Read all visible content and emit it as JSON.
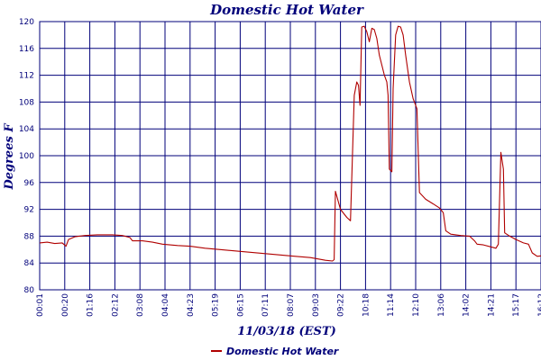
{
  "chart_data": {
    "type": "line",
    "title": "Domestic Hot Water",
    "xlabel": "11/03/18 (EST)",
    "ylabel": "Degrees F",
    "ylim": [
      80,
      120
    ],
    "yticks": [
      "80",
      "84",
      "88",
      "92",
      "96",
      "100",
      "104",
      "108",
      "112",
      "116",
      "120"
    ],
    "xticks": [
      "00:01",
      "00:20",
      "01:16",
      "02:12",
      "03:08",
      "04:04",
      "04:23",
      "05:19",
      "06:15",
      "07:11",
      "08:07",
      "09:03",
      "09:22",
      "10:18",
      "11:14",
      "12:10",
      "13:06",
      "14:02",
      "14:21",
      "15:17",
      "16:12"
    ],
    "grid": true,
    "legend_position": "bottom-left",
    "colors": {
      "series": "#b00000",
      "text": "#00007a",
      "grid": "#00007a"
    },
    "series": [
      {
        "name": "Domestic Hot Water",
        "points": [
          [
            0.0,
            87.0
          ],
          [
            0.3,
            87.1
          ],
          [
            0.6,
            86.9
          ],
          [
            0.9,
            87.0
          ],
          [
            1.05,
            86.5
          ],
          [
            1.15,
            87.5
          ],
          [
            1.4,
            87.9
          ],
          [
            1.8,
            88.1
          ],
          [
            2.3,
            88.2
          ],
          [
            2.9,
            88.2
          ],
          [
            3.3,
            88.1
          ],
          [
            3.6,
            87.8
          ],
          [
            3.7,
            87.3
          ],
          [
            4.1,
            87.3
          ],
          [
            4.5,
            87.1
          ],
          [
            4.9,
            86.8
          ],
          [
            5.5,
            86.6
          ],
          [
            6.0,
            86.5
          ],
          [
            6.6,
            86.2
          ],
          [
            7.2,
            86.0
          ],
          [
            7.8,
            85.8
          ],
          [
            8.4,
            85.6
          ],
          [
            9.0,
            85.4
          ],
          [
            9.6,
            85.2
          ],
          [
            10.2,
            85.0
          ],
          [
            10.8,
            84.8
          ],
          [
            11.1,
            84.6
          ],
          [
            11.4,
            84.4
          ],
          [
            11.68,
            84.3
          ],
          [
            11.75,
            84.5
          ],
          [
            11.8,
            94.7
          ],
          [
            12.0,
            92.0
          ],
          [
            12.25,
            90.8
          ],
          [
            12.4,
            90.3
          ],
          [
            12.55,
            109.0
          ],
          [
            12.65,
            111.0
          ],
          [
            12.72,
            110.5
          ],
          [
            12.78,
            107.5
          ],
          [
            12.85,
            119.2
          ],
          [
            12.95,
            119.3
          ],
          [
            13.05,
            118.5
          ],
          [
            13.15,
            117.0
          ],
          [
            13.25,
            119.0
          ],
          [
            13.35,
            118.8
          ],
          [
            13.45,
            117.5
          ],
          [
            13.55,
            115.0
          ],
          [
            13.65,
            113.5
          ],
          [
            13.75,
            112.0
          ],
          [
            13.85,
            111.0
          ],
          [
            13.9,
            109.0
          ],
          [
            13.95,
            98.0
          ],
          [
            14.05,
            97.6
          ],
          [
            14.1,
            110.0
          ],
          [
            14.2,
            118.0
          ],
          [
            14.3,
            119.3
          ],
          [
            14.4,
            119.2
          ],
          [
            14.5,
            118.0
          ],
          [
            14.6,
            115.0
          ],
          [
            14.75,
            111.0
          ],
          [
            14.9,
            108.5
          ],
          [
            15.05,
            107.0
          ],
          [
            15.15,
            94.5
          ],
          [
            15.4,
            93.5
          ],
          [
            15.7,
            92.8
          ],
          [
            15.95,
            92.2
          ],
          [
            16.1,
            91.5
          ],
          [
            16.2,
            88.8
          ],
          [
            16.4,
            88.3
          ],
          [
            16.8,
            88.1
          ],
          [
            17.15,
            88.0
          ],
          [
            17.35,
            87.3
          ],
          [
            17.45,
            86.8
          ],
          [
            17.7,
            86.7
          ],
          [
            18.0,
            86.4
          ],
          [
            18.2,
            86.2
          ],
          [
            18.3,
            86.8
          ],
          [
            18.4,
            100.5
          ],
          [
            18.5,
            98.0
          ],
          [
            18.55,
            88.5
          ],
          [
            18.75,
            88.0
          ],
          [
            19.0,
            87.5
          ],
          [
            19.3,
            87.0
          ],
          [
            19.5,
            86.8
          ],
          [
            19.65,
            85.5
          ],
          [
            19.85,
            85.0
          ],
          [
            20.1,
            85.1
          ],
          [
            20.3,
            84.8
          ],
          [
            20.5,
            84.6
          ]
        ]
      }
    ]
  }
}
